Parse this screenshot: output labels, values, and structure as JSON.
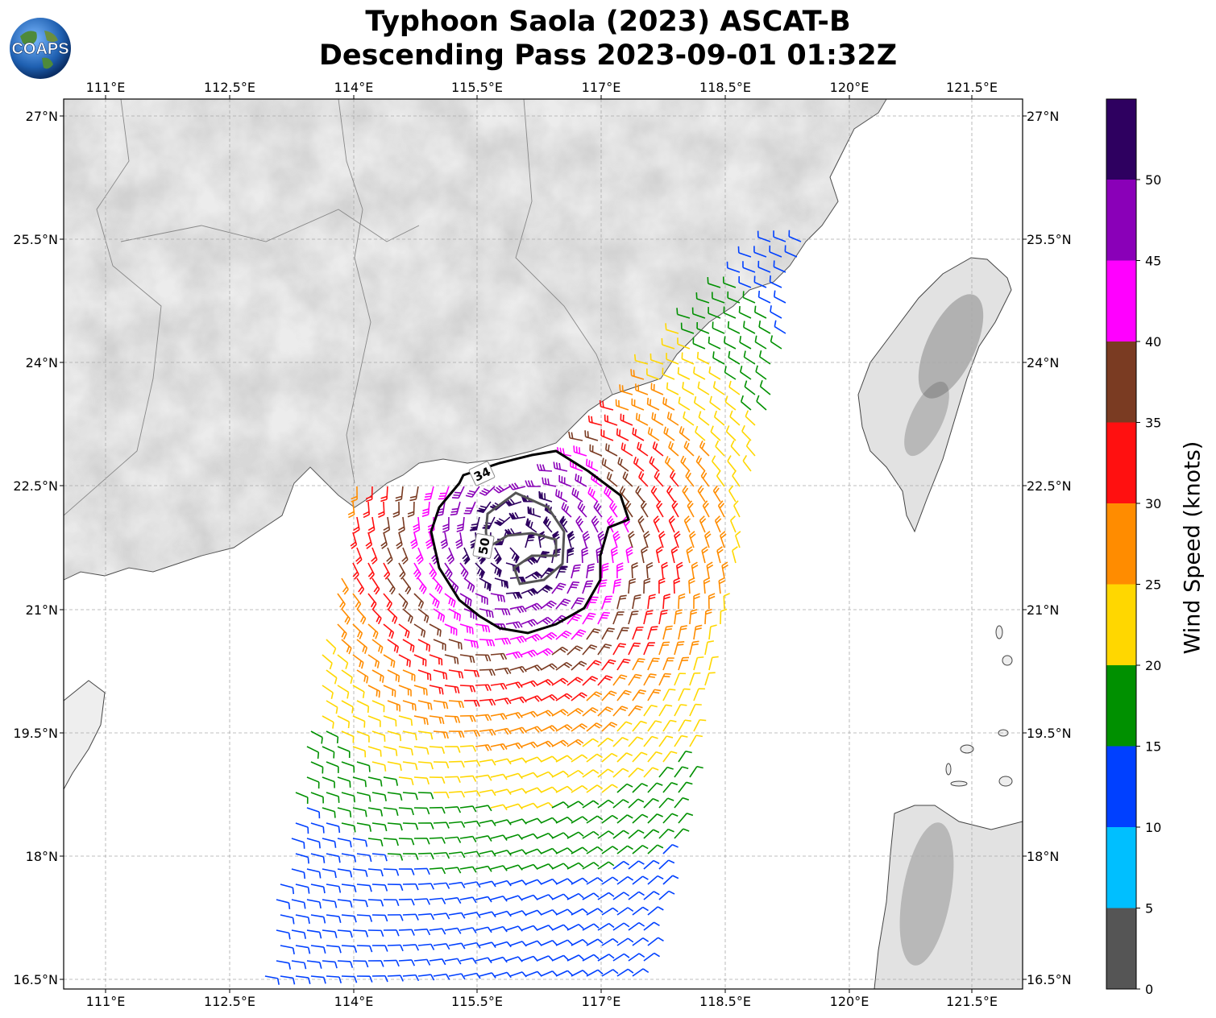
{
  "title_line1": "Typhoon Saola (2023) ASCAT-B",
  "title_line2": "Descending Pass 2023-09-01 01:32Z",
  "logo_text": "COAPS",
  "lon_ticks": [
    "111°E",
    "112.5°E",
    "114°E",
    "115.5°E",
    "117°E",
    "118.5°E",
    "120°E",
    "121.5°E"
  ],
  "lat_ticks": [
    "27°N",
    "25.5°N",
    "24°N",
    "22.5°N",
    "21°N",
    "19.5°N",
    "18°N",
    "16.5°N"
  ],
  "contour_labels": [
    "34",
    "50"
  ],
  "colorbar": {
    "label": "Wind Speed (knots)",
    "ticks": [
      "0",
      "5",
      "10",
      "15",
      "20",
      "25",
      "30",
      "35",
      "40",
      "45",
      "50"
    ],
    "colors": [
      "#555555",
      "#00bfff",
      "#0040ff",
      "#009000",
      "#ffd700",
      "#ff8c00",
      "#ff1010",
      "#7a3b22",
      "#ff00ff",
      "#8a00b8",
      "#2e0060"
    ]
  }
}
